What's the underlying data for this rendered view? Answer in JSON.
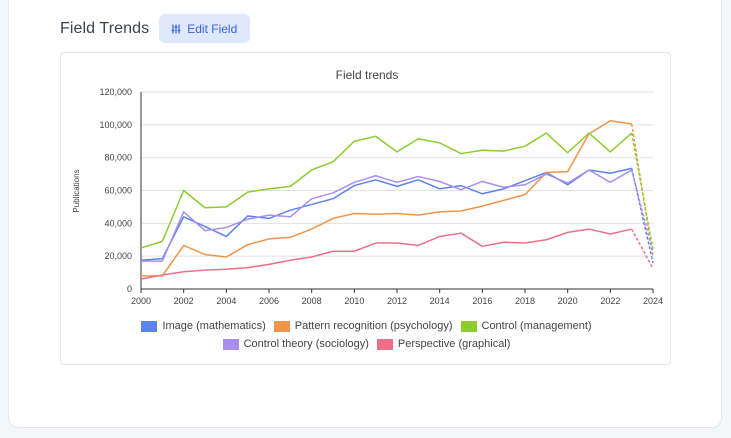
{
  "header": {
    "title": "Field Trends",
    "edit_label": "Edit Field",
    "edit_icon": "sliders-icon"
  },
  "colors": {
    "accent": "#3b62d6",
    "button_bg": "#dde8fc"
  },
  "chart_data": {
    "type": "line",
    "title": "Field trends",
    "xlabel": "",
    "ylabel": "Publications",
    "xlim": [
      2000,
      2024
    ],
    "ylim": [
      0,
      120000
    ],
    "x_ticks": [
      2000,
      2002,
      2004,
      2006,
      2008,
      2010,
      2012,
      2014,
      2016,
      2018,
      2020,
      2022,
      2024
    ],
    "y_ticks": [
      0,
      20000,
      40000,
      60000,
      80000,
      100000,
      120000
    ],
    "y_tick_labels": [
      "0",
      "20,000",
      "40,000",
      "60,000",
      "80,000",
      "100,000",
      "120,000"
    ],
    "grid": "horizontal",
    "legend_position": "bottom",
    "x": [
      2000,
      2001,
      2002,
      2003,
      2004,
      2005,
      2006,
      2007,
      2008,
      2009,
      2010,
      2011,
      2012,
      2013,
      2014,
      2015,
      2016,
      2017,
      2018,
      2019,
      2020,
      2021,
      2022,
      2023
    ],
    "projection_x": [
      2023,
      2024
    ],
    "series": [
      {
        "name": "Image (mathematics)",
        "color": "#5b84f0",
        "values": [
          17500,
          18500,
          44000,
          38000,
          32000,
          44500,
          43000,
          48000,
          51500,
          55000,
          63000,
          66500,
          62500,
          66500,
          61000,
          63000,
          58000,
          61000,
          66000,
          71000,
          63500,
          72500,
          70500,
          73500
        ],
        "projection": [
          73500,
          16000
        ]
      },
      {
        "name": "Pattern recognition (psychology)",
        "color": "#f0954a",
        "values": [
          8000,
          8000,
          26500,
          21000,
          19500,
          27000,
          30500,
          31500,
          36500,
          43000,
          46000,
          45500,
          46000,
          45000,
          47000,
          47500,
          50500,
          54000,
          57500,
          71000,
          71500,
          94500,
          102500,
          100500
        ],
        "projection": [
          100500,
          19500
        ]
      },
      {
        "name": "Control (management)",
        "color": "#8ccc2e",
        "values": [
          25000,
          29000,
          60000,
          49500,
          50000,
          59000,
          61000,
          62500,
          72500,
          77500,
          90000,
          93000,
          83500,
          91500,
          89000,
          82500,
          84500,
          84000,
          87000,
          95000,
          83000,
          95000,
          83500,
          95000
        ],
        "projection": [
          95000,
          24000
        ]
      },
      {
        "name": "Control theory (sociology)",
        "color": "#a98ef0",
        "values": [
          17000,
          17000,
          47000,
          35500,
          37500,
          42500,
          45000,
          44000,
          55000,
          58500,
          65000,
          69000,
          65000,
          68500,
          65500,
          60500,
          65500,
          62000,
          63500,
          70000,
          64500,
          72500,
          65000,
          72500
        ],
        "projection": [
          72500,
          22000
        ]
      },
      {
        "name": "Perspective (graphical)",
        "color": "#ec7088",
        "values": [
          6000,
          8500,
          10500,
          11500,
          12000,
          13000,
          15000,
          17500,
          19500,
          23000,
          23000,
          28000,
          28000,
          26500,
          32000,
          34000,
          26000,
          28500,
          28000,
          30000,
          34500,
          36500,
          33500,
          36500
        ],
        "projection": [
          36500,
          12500
        ]
      }
    ]
  }
}
